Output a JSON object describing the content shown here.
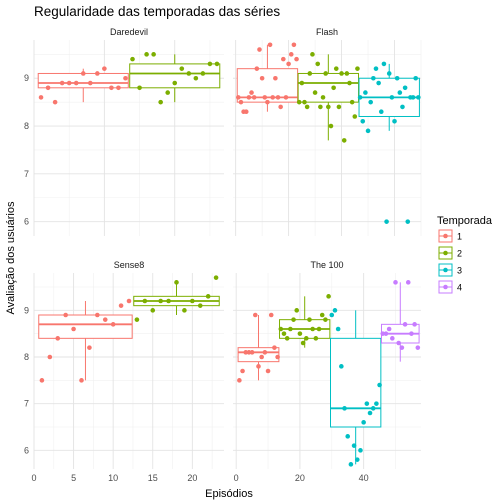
{
  "chart_data": {
    "type": "boxplot-faceted",
    "title": "Regularidade das temporadas das séries",
    "xlabel": "Episódios",
    "ylabel": "Avaliação dos usuários",
    "legend": {
      "title": "Temporada",
      "placement": "right",
      "entries": [
        {
          "label": "1",
          "color": "#F8766D"
        },
        {
          "label": "2",
          "color": "#7CAE00"
        },
        {
          "label": "3",
          "color": "#00BFC4"
        },
        {
          "label": "4",
          "color": "#C77CFF"
        }
      ]
    },
    "grid": true,
    "facets": [
      {
        "name": "Daredevil",
        "xlim": [
          0,
          27
        ],
        "ylim": [
          5.7,
          9.8
        ],
        "xticks": [
          0,
          10,
          20
        ],
        "yticks": [
          6,
          7,
          8,
          9
        ],
        "seasons": [
          {
            "season": "1",
            "x_range": [
              1,
              13
            ],
            "box": {
              "q1": 8.8,
              "median": 8.9,
              "q3": 9.1,
              "lo": 8.5,
              "hi": 9.2
            },
            "points": [
              [
                1,
                8.6
              ],
              [
                2,
                8.8
              ],
              [
                3,
                8.5
              ],
              [
                4,
                8.9
              ],
              [
                5,
                8.9
              ],
              [
                6,
                8.9
              ],
              [
                7,
                9.1
              ],
              [
                8,
                8.9
              ],
              [
                9,
                9.1
              ],
              [
                10,
                9.2
              ],
              [
                11,
                8.8
              ],
              [
                12,
                8.8
              ],
              [
                13,
                9.0
              ]
            ]
          },
          {
            "season": "2",
            "x_range": [
              14,
              26
            ],
            "box": {
              "q1": 8.8,
              "median": 9.1,
              "q3": 9.3,
              "lo": 8.5,
              "hi": 9.5
            },
            "points": [
              [
                14,
                9.4
              ],
              [
                15,
                8.8
              ],
              [
                16,
                9.5
              ],
              [
                17,
                9.5
              ],
              [
                18,
                8.5
              ],
              [
                19,
                8.7
              ],
              [
                20,
                8.9
              ],
              [
                21,
                9.2
              ],
              [
                22,
                9.1
              ],
              [
                23,
                9.0
              ],
              [
                24,
                9.1
              ],
              [
                25,
                9.3
              ],
              [
                26,
                9.3
              ]
            ]
          }
        ]
      },
      {
        "name": "Flash",
        "xlim": [
          -1,
          70
        ],
        "ylim": [
          5.7,
          9.8
        ],
        "xticks": [
          0,
          20,
          40,
          60
        ],
        "yticks": [
          6,
          7,
          8,
          9
        ],
        "seasons": [
          {
            "season": "1",
            "x_range": [
              1,
              23
            ],
            "box": {
              "q1": 8.5,
              "median": 8.6,
              "q3": 9.2,
              "lo": 8.3,
              "hi": 9.7
            },
            "points": [
              [
                1,
                8.6
              ],
              [
                2,
                8.5
              ],
              [
                3,
                8.3
              ],
              [
                4,
                8.3
              ],
              [
                5,
                8.6
              ],
              [
                6,
                8.7
              ],
              [
                7,
                8.6
              ],
              [
                8,
                9.2
              ],
              [
                9,
                9.6
              ],
              [
                10,
                9.0
              ],
              [
                11,
                8.6
              ],
              [
                12,
                8.5
              ],
              [
                13,
                9.7
              ],
              [
                14,
                8.6
              ],
              [
                15,
                9.0
              ],
              [
                16,
                8.6
              ],
              [
                17,
                8.4
              ],
              [
                18,
                9.4
              ],
              [
                19,
                8.6
              ],
              [
                20,
                9.3
              ],
              [
                21,
                9.5
              ],
              [
                22,
                9.7
              ],
              [
                23,
                9.4
              ]
            ]
          },
          {
            "season": "2",
            "x_range": [
              24,
              46
            ],
            "box": {
              "q1": 8.5,
              "median": 8.9,
              "q3": 9.1,
              "lo": 7.7,
              "hi": 9.5
            },
            "points": [
              [
                24,
                8.5
              ],
              [
                25,
                8.9
              ],
              [
                26,
                8.5
              ],
              [
                27,
                8.4
              ],
              [
                28,
                9.1
              ],
              [
                29,
                9.5
              ],
              [
                30,
                8.7
              ],
              [
                31,
                9.3
              ],
              [
                32,
                8.4
              ],
              [
                33,
                8.6
              ],
              [
                34,
                9.1
              ],
              [
                35,
                8.4
              ],
              [
                36,
                8.0
              ],
              [
                37,
                8.8
              ],
              [
                38,
                9.2
              ],
              [
                39,
                8.4
              ],
              [
                40,
                9.1
              ],
              [
                41,
                7.7
              ],
              [
                42,
                9.1
              ],
              [
                43,
                8.9
              ],
              [
                44,
                8.5
              ],
              [
                45,
                8.2
              ],
              [
                46,
                9.2
              ]
            ]
          },
          {
            "season": "3",
            "x_range": [
              47,
              69
            ],
            "box": {
              "q1": 8.2,
              "median": 8.6,
              "q3": 9.0,
              "lo": 7.9,
              "hi": 9.3
            },
            "points": [
              [
                47,
                8.6
              ],
              [
                48,
                8.1
              ],
              [
                49,
                8.7
              ],
              [
                50,
                7.9
              ],
              [
                51,
                8.5
              ],
              [
                52,
                9.0
              ],
              [
                53,
                9.2
              ],
              [
                54,
                8.9
              ],
              [
                55,
                8.3
              ],
              [
                56,
                9.3
              ],
              [
                57,
                6.0
              ],
              [
                58,
                9.1
              ],
              [
                59,
                8.6
              ],
              [
                60,
                8.1
              ],
              [
                61,
                9.0
              ],
              [
                62,
                8.7
              ],
              [
                63,
                8.4
              ],
              [
                64,
                8.8
              ],
              [
                65,
                6.0
              ],
              [
                66,
                8.6
              ],
              [
                67,
                8.6
              ],
              [
                68,
                9.0
              ],
              [
                69,
                8.6
              ]
            ]
          }
        ]
      },
      {
        "name": "Sense8",
        "xlim": [
          0,
          24
        ],
        "ylim": [
          5.6,
          9.8
        ],
        "xticks": [
          0,
          5,
          10,
          15,
          20
        ],
        "yticks": [
          6,
          7,
          8,
          9
        ],
        "seasons": [
          {
            "season": "1",
            "x_range": [
              1,
              12
            ],
            "box": {
              "q1": 8.4,
              "median": 8.7,
              "q3": 8.9,
              "lo": 7.5,
              "hi": 9.2
            },
            "points": [
              [
                1,
                7.5
              ],
              [
                2,
                8.0
              ],
              [
                3,
                8.4
              ],
              [
                4,
                8.9
              ],
              [
                5,
                8.6
              ],
              [
                6,
                7.5
              ],
              [
                7,
                8.2
              ],
              [
                8,
                8.9
              ],
              [
                9,
                8.8
              ],
              [
                10,
                8.7
              ],
              [
                11,
                9.1
              ],
              [
                12,
                9.2
              ]
            ]
          },
          {
            "season": "2",
            "x_range": [
              13,
              23
            ],
            "box": {
              "q1": 9.1,
              "median": 9.2,
              "q3": 9.3,
              "lo": 8.9,
              "hi": 9.6
            },
            "points": [
              [
                13,
                8.8
              ],
              [
                14,
                9.2
              ],
              [
                15,
                9.0
              ],
              [
                16,
                9.2
              ],
              [
                17,
                9.2
              ],
              [
                18,
                9.6
              ],
              [
                19,
                9.0
              ],
              [
                20,
                9.2
              ],
              [
                21,
                9.1
              ],
              [
                22,
                9.3
              ],
              [
                23,
                9.7
              ]
            ]
          }
        ]
      },
      {
        "name": "The 100",
        "xlim": [
          -1,
          58
        ],
        "ylim": [
          5.6,
          9.8
        ],
        "xticks": [
          0,
          20,
          40
        ],
        "yticks": [
          6,
          7,
          8,
          9
        ],
        "seasons": [
          {
            "season": "1",
            "x_range": [
              1,
              13
            ],
            "box": {
              "q1": 7.9,
              "median": 8.1,
              "q3": 8.2,
              "lo": 7.5,
              "hi": 8.9
            },
            "points": [
              [
                1,
                7.5
              ],
              [
                2,
                7.7
              ],
              [
                3,
                8.1
              ],
              [
                4,
                8.1
              ],
              [
                5,
                8.1
              ],
              [
                6,
                8.9
              ],
              [
                7,
                7.8
              ],
              [
                8,
                8.0
              ],
              [
                9,
                8.1
              ],
              [
                10,
                7.7
              ],
              [
                11,
                8.9
              ],
              [
                12,
                8.2
              ],
              [
                13,
                8.0
              ]
            ]
          },
          {
            "season": "2",
            "x_range": [
              14,
              29
            ],
            "box": {
              "q1": 8.4,
              "median": 8.6,
              "q3": 8.8,
              "lo": 8.2,
              "hi": 9.3
            },
            "points": [
              [
                14,
                8.6
              ],
              [
                15,
                8.5
              ],
              [
                16,
                8.4
              ],
              [
                17,
                8.6
              ],
              [
                18,
                8.8
              ],
              [
                19,
                9.0
              ],
              [
                20,
                8.5
              ],
              [
                21,
                8.3
              ],
              [
                22,
                8.4
              ],
              [
                23,
                8.8
              ],
              [
                24,
                8.6
              ],
              [
                25,
                8.4
              ],
              [
                26,
                8.6
              ],
              [
                27,
                8.9
              ],
              [
                28,
                8.8
              ],
              [
                29,
                9.3
              ]
            ]
          },
          {
            "season": "3",
            "x_range": [
              30,
              45
            ],
            "box": {
              "q1": 6.5,
              "median": 6.9,
              "q3": 8.4,
              "lo": 5.7,
              "hi": 9.0
            },
            "points": [
              [
                30,
                8.9
              ],
              [
                31,
                9.0
              ],
              [
                32,
                8.6
              ],
              [
                33,
                7.8
              ],
              [
                34,
                6.9
              ],
              [
                35,
                6.3
              ],
              [
                36,
                5.7
              ],
              [
                37,
                6.1
              ],
              [
                38,
                5.8
              ],
              [
                39,
                6.0
              ],
              [
                40,
                6.6
              ],
              [
                41,
                7.0
              ],
              [
                42,
                6.8
              ],
              [
                43,
                6.9
              ],
              [
                44,
                7.0
              ],
              [
                45,
                7.4
              ]
            ]
          },
          {
            "season": "4",
            "x_range": [
              46,
              57
            ],
            "box": {
              "q1": 8.3,
              "median": 8.5,
              "q3": 8.7,
              "lo": 7.9,
              "hi": 9.6
            },
            "points": [
              [
                46,
                8.5
              ],
              [
                47,
                8.5
              ],
              [
                48,
                8.6
              ],
              [
                49,
                8.4
              ],
              [
                50,
                9.6
              ],
              [
                51,
                8.3
              ],
              [
                52,
                8.2
              ],
              [
                53,
                8.7
              ],
              [
                54,
                9.6
              ],
              [
                55,
                8.5
              ],
              [
                56,
                8.7
              ],
              [
                57,
                8.2
              ]
            ]
          }
        ]
      }
    ]
  }
}
